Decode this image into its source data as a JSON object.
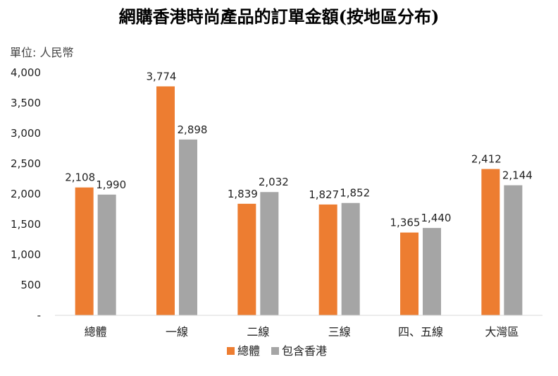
{
  "chart_data": {
    "type": "bar",
    "title": "網購香港時尚產品的訂單金額(按地區分布)",
    "unit_label": "單位: 人民幣",
    "categories": [
      "總體",
      "一線",
      "二線",
      "三線",
      "四、五線",
      "大灣區"
    ],
    "series": [
      {
        "name": "總體",
        "color": "#ED7D31",
        "values": [
          2108,
          3774,
          1839,
          1827,
          1365,
          2412
        ],
        "labels": [
          "2,108",
          "3,774",
          "1,839",
          "1,827",
          "1,365",
          "2,412"
        ]
      },
      {
        "name": "包含香港",
        "color": "#A5A5A5",
        "values": [
          1990,
          2898,
          2032,
          1852,
          1440,
          2144
        ],
        "labels": [
          "1,990",
          "2,898",
          "2,032",
          "1,852",
          "1,440",
          "2,144"
        ]
      }
    ],
    "ylim": [
      0,
      4000
    ],
    "yticks": [
      0,
      500,
      1000,
      1500,
      2000,
      2500,
      3000,
      3500,
      4000
    ],
    "ytick_labels": [
      "-",
      "500",
      "1,000",
      "1,500",
      "2,000",
      "2,500",
      "3,000",
      "3,500",
      "4,000"
    ],
    "xlabel": "",
    "ylabel": "",
    "legend_position": "bottom",
    "grid": false
  }
}
